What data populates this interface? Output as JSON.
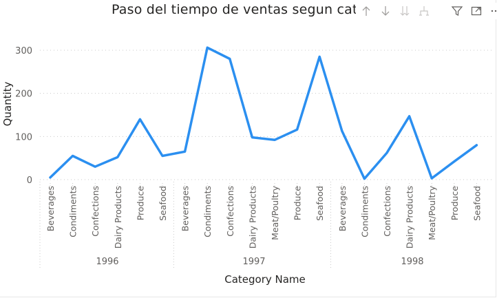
{
  "visual": {
    "title": "Paso del tiempo de ventas segun categoría",
    "toolbar": [
      {
        "icon": "arrow-up-icon"
      },
      {
        "icon": "arrow-down-icon"
      },
      {
        "icon": "double-arrow-down-icon"
      },
      {
        "icon": "expand-hierarchy-icon"
      },
      {
        "icon": "filter-icon"
      },
      {
        "icon": "focus-mode-icon"
      },
      {
        "icon": "more-options-icon"
      }
    ]
  },
  "colors": {
    "line": "#2b8ff0",
    "text": "#252423",
    "axis_text": "#605e5c",
    "grid": "#c8c8c8"
  },
  "chart_data": {
    "type": "line",
    "xlabel": "Category Name",
    "ylabel": "Quantity",
    "ylim": [
      0,
      320
    ],
    "yticks": [
      0,
      100,
      200,
      300
    ],
    "grid": true,
    "groups": [
      {
        "label": "1996",
        "categories": [
          "Beverages",
          "Condiments",
          "Confections",
          "Dairy Products",
          "Produce",
          "Seafood"
        ]
      },
      {
        "label": "1997",
        "categories": [
          "Beverages",
          "Condiments",
          "Confections",
          "Dairy Products",
          "Meat/Poultry",
          "Produce",
          "Seafood"
        ]
      },
      {
        "label": "1998",
        "categories": [
          "Beverages",
          "Condiments",
          "Confections",
          "Dairy Products",
          "Meat/Poultry",
          "Produce",
          "Seafood"
        ]
      }
    ],
    "series": [
      {
        "values": [
          5,
          55,
          30,
          52,
          140,
          55,
          65,
          306,
          280,
          98,
          92,
          116,
          285,
          113,
          2,
          62,
          147,
          3,
          42,
          80
        ]
      }
    ]
  }
}
